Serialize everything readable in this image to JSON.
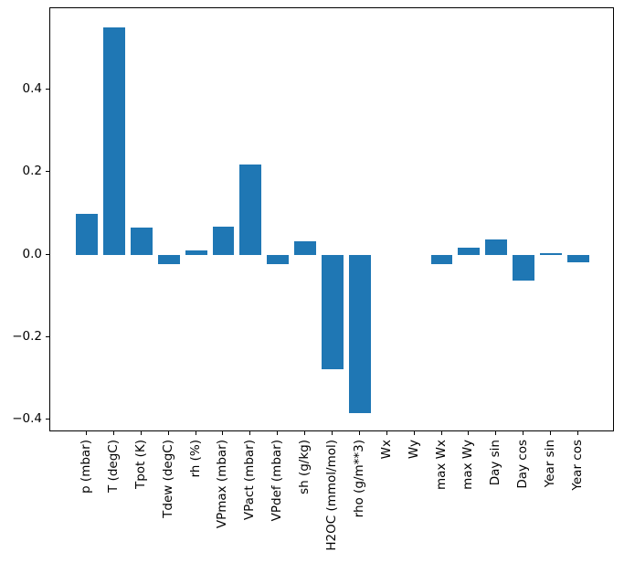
{
  "figure": {
    "background": "#ffffff",
    "border_color": "#000000"
  },
  "chart_data": {
    "type": "bar",
    "title": "",
    "xlabel": "",
    "ylabel": "",
    "grid": false,
    "legend": null,
    "bar_color": "#1f77b4",
    "bar_width": 0.8,
    "xtick_rotation": 90,
    "categories": [
      "p (mbar)",
      "T (degC)",
      "Tpot (K)",
      "Tdew (degC)",
      "rh (%)",
      "VPmax (mbar)",
      "VPact (mbar)",
      "VPdef (mbar)",
      "sh (g/kg)",
      "H2OC (mmol/mol)",
      "rho (g/m**3)",
      "Wx",
      "Wy",
      "max Wx",
      "max Wy",
      "Day sin",
      "Day cos",
      "Year sin",
      "Year cos"
    ],
    "values": [
      0.1,
      0.551,
      0.065,
      -0.024,
      0.011,
      0.069,
      0.219,
      -0.024,
      0.032,
      -0.277,
      -0.384,
      0.0,
      0.0,
      -0.024,
      0.018,
      0.037,
      -0.063,
      0.003,
      -0.019
    ],
    "ylim": [
      -0.431,
      0.598
    ],
    "xlim": [
      -1.34,
      19.34
    ],
    "yticks": [
      0.4,
      0.2,
      0.0,
      -0.2,
      -0.4
    ],
    "ytick_labels": [
      "0.4",
      "0.2",
      "0.0",
      "−0.2",
      "−0.4"
    ]
  }
}
